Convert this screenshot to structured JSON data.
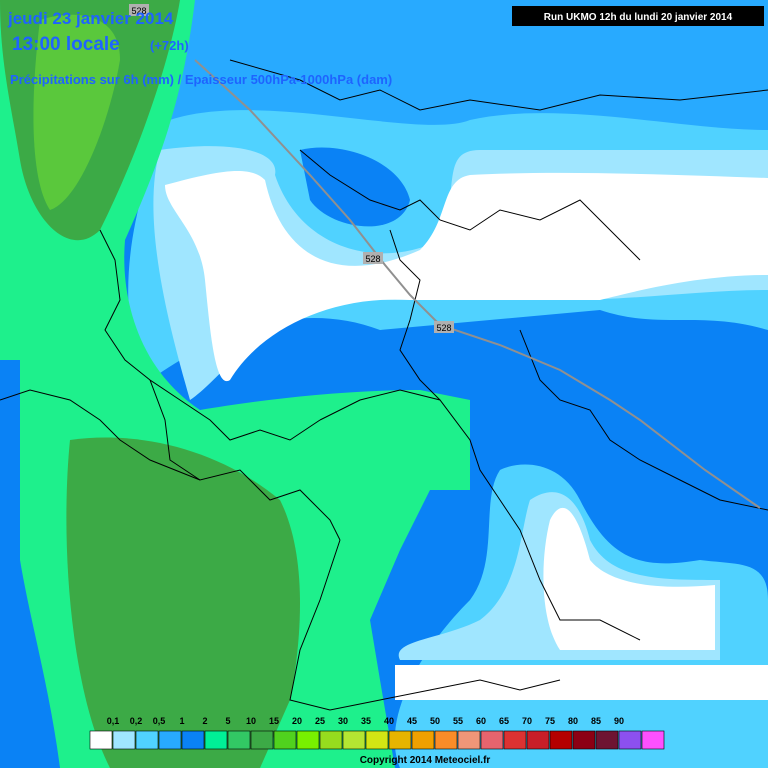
{
  "header": {
    "date": "jeudi 23 janvier 2014",
    "time": "13:00 locale",
    "lead": "(+72h)",
    "subtitle": "Précipitations sur 6h (mm) / Epaisseur 500hPa-1000hPa (dam)",
    "run": "Run UKMO 12h du lundi 20 janvier 2014"
  },
  "contour_labels": [
    "528",
    "528",
    "528"
  ],
  "legend": {
    "labels": [
      "0,1",
      "0,2",
      "0,5",
      "1",
      "2",
      "5",
      "10",
      "15",
      "20",
      "25",
      "30",
      "35",
      "40",
      "45",
      "50",
      "55",
      "60",
      "65",
      "70",
      "75",
      "80",
      "85",
      "90"
    ],
    "colors": [
      "#ffffff",
      "#a0e6ff",
      "#50d2ff",
      "#28aaff",
      "#0a82f5",
      "#00f096",
      "#32c864",
      "#3caa46",
      "#50d21e",
      "#78f000",
      "#96dc1e",
      "#b4e632",
      "#d2e614",
      "#e6b400",
      "#f0a000",
      "#fa8c28",
      "#f09678",
      "#e6646e",
      "#dc3232",
      "#c81e28",
      "#b40000",
      "#8c0014",
      "#6e1432",
      "#8c50f0",
      "#ff50ff"
    ]
  },
  "footer": {
    "copyright": "Copyright 2014 Meteociel.fr"
  }
}
